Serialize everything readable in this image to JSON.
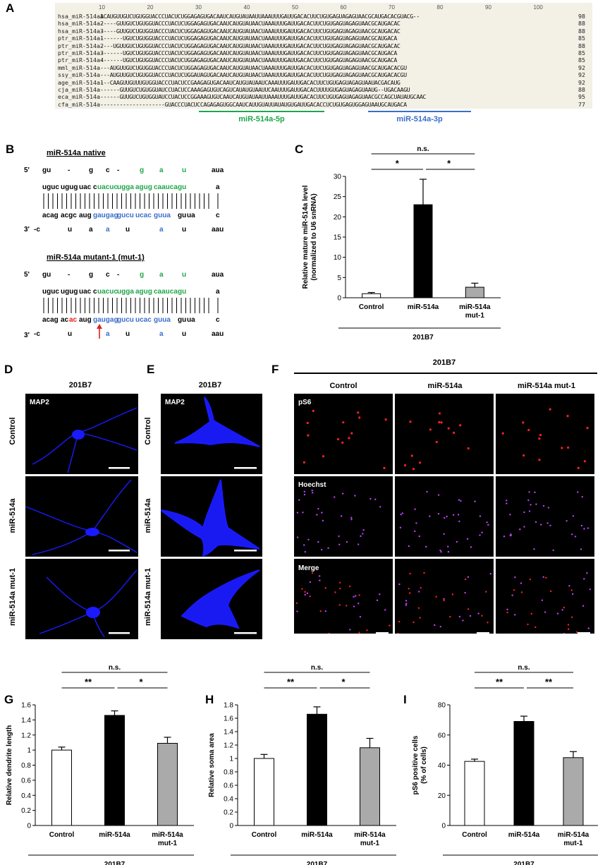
{
  "panel_letters": [
    "A",
    "B",
    "C",
    "D",
    "E",
    "F",
    "G",
    "H",
    "I"
  ],
  "alignment": {
    "ruler": [
      "10",
      "20",
      "30",
      "40",
      "50",
      "60",
      "70",
      "80",
      "90",
      "100"
    ],
    "rows": [
      {
        "name": "hsa_miR-514a1",
        "seq": "ACAUGUUGUCUGUGGUACCCUACUCUGGAGAGUGACAAUCAUGUAUAAUUAAAUUUGAUUGACACUUCUGUGAGUAGAGUAACGCAUGACACGUACG--",
        "len": "98"
      },
      {
        "name": "hsa_miR-514a2",
        "seq": "-----GUUGUCUGUGGUACCCUACUCUGGAGAGUGACAAUCAUGUAUAACUAAAUUUGAUUGACACUUCUGUGAGUAGAGUAACGCAUGACAC",
        "len": "88"
      },
      {
        "name": "hsa_miR-514a3",
        "seq": "-----GUUGUCUGUGGUACCCUACUCUGGAGAGUGACAAUCAUGUAUAACUAAAUUUGAUUGACACUUCUGUGAGUAGAGUAACGCAUGACAC",
        "len": "88"
      },
      {
        "name": "ptr_miR-514a1",
        "seq": "-------UGUCUGUGGUACCCUACUCUGGAGAGUGACAAUCAUGUAUAACUAAAUUUGAUUGACACUUCUGUGAGUAGAGUAACGCAUGACA",
        "len": "85"
      },
      {
        "name": "ptr_miR-514a2",
        "seq": "----UGUUGUCUGUGGUACCCUACUCUGGAGAGUGACAAUCAUGUAUAACUAAAUUUGAUUGACACUUCUGUGAGUAGAGUAACGCAUGACAC",
        "len": "88"
      },
      {
        "name": "ptr_miR-514a3",
        "seq": "-------UGUCUGUGGUACCCUACUCUGGAGAGUGACAAUCAUGUAUAACUAAAUUUGAUUGACACUUCUGUGAGUAGAGUAACGCAUGACA",
        "len": "85"
      },
      {
        "name": "ptr_miR-514a4",
        "seq": "-------UGUCUGUGGUACCCUACUCUGGAGAGUGACAAUCAUGUAUAACUAAAUUUGAUUGACACUUCUGUGAGUAGAGUAACGCAUGACA",
        "len": "85"
      },
      {
        "name": "mml_miR-514a",
        "seq": "---AUGUUGUCUGUGGUACCCUACUCUGGAGAGUGACAAUCAUGUAUAACUAAAUUUGAUUGACACUUCUGUGAGUAGAGUAACGCAUGACACGU",
        "len": "92"
      },
      {
        "name": "ssy_miR-514a",
        "seq": "---AUGUUGUCUGUGGUACCCUACUCUGGAUAGUGACAAUCAUGUAUAACUAAAUUUGAUUGACACUUCUGUGAGUAGAGUAACGCAUGACACGU",
        "len": "92"
      },
      {
        "name": "age_miR-514a1",
        "seq": "---CAAGUUGUUUGUGGUACCCUACUCCGAAGAGUGACAAUCAUGUAUAAUCAAAUUUGAUUGACACUUCUGUGAGUAGAGUAAUACGACAUG",
        "len": "92"
      },
      {
        "name": "cja_miR-514a",
        "seq": "------GUUGUCUGUGGUAUCCUACUCCAAAGAGUGUCAGUCAUAUGUAAUUCAAUUUGAUUGACACUUUUGUGAGUAGAGUAAUG--UGACAAGU",
        "len": "88"
      },
      {
        "name": "eca_miR-514a",
        "seq": "------GUUGUCUGUGGUAUCCUACUCCGGAAAGUGUCAAUCAUGUAUAAUUAAAUUUGAUUGACACUUCUGUGAGUAGAGUAACGCCAGCUAUAUGCAAC",
        "len": "95"
      },
      {
        "name": "cfa_miR-514a",
        "seq": "--------------------GUACCCUACUCCAGAGAGUGGCAAUCAUUGUAUUAUAUGUGAUUGACACCUCUGUGAGUGGAGUAAUGCAUGACA",
        "len": "77"
      }
    ],
    "label_5p": "miR-514a-5p",
    "label_3p": "miR-514a-3p",
    "color_5p": "#1fa64a",
    "color_3p": "#3b6ec9"
  },
  "hairpin_native": {
    "title": "miR-514a native",
    "prime5": "5'",
    "prime3": "3'",
    "top_loop": [
      "gu",
      "-",
      "g",
      "c",
      "-",
      "g",
      "a",
      "u",
      "aua"
    ],
    "top_paired": [
      "uguc",
      "ugug",
      "uac",
      "c",
      "uacuc",
      "ugga",
      "agug",
      "caauca",
      "gu",
      "a"
    ],
    "bottom_paired": [
      "acag",
      "acgc",
      "aug",
      "gaugag",
      "gucu",
      "ucac",
      "guua",
      "gu",
      "ua",
      "c"
    ],
    "bottom_loop": [
      "-c",
      "u",
      "a",
      "a",
      "u",
      "a",
      "u",
      "aau"
    ]
  },
  "hairpin_mutant": {
    "title": "miR-514a mutant-1 (mut-1)",
    "prime5": "5'",
    "prime3": "3'",
    "top_loop": [
      "gu",
      "-",
      "g",
      "c",
      "-",
      "g",
      "a",
      "u",
      "aua"
    ],
    "top_paired": [
      "uguc",
      "ugug",
      "uac",
      "c",
      "uacuc",
      "ugga",
      "agug",
      "caauca",
      "gu",
      "a"
    ],
    "bottom_paired_prefix": [
      "acag",
      "ac"
    ],
    "mutation": "ac",
    "bottom_paired": [
      "aug",
      "gaugag",
      "gucu",
      "ucac",
      "guua",
      "gu",
      "ua",
      "c"
    ],
    "bottom_loop": [
      "-c",
      "u",
      "a",
      "u",
      "a",
      "u",
      "aau"
    ]
  },
  "chart_C": {
    "ylabel": "Relative mature miR-514a level (normalized to U6 snRNA)",
    "ylabel1": "Relative mature miR-514a level",
    "ylabel2": "(normalized to U6 snRNA)",
    "categories": [
      "Control",
      "miR-514a",
      "miR-514a mut-1"
    ],
    "cat_lines": [
      [
        "Control"
      ],
      [
        "miR-514a"
      ],
      [
        "miR-514a",
        "mut-1"
      ]
    ],
    "values": [
      1.0,
      23.0,
      2.6
    ],
    "errors": [
      0.3,
      6.3,
      1.0
    ],
    "ylim": [
      0,
      30
    ],
    "ticks": [
      "0",
      "5",
      "10",
      "15",
      "20",
      "25",
      "30"
    ],
    "sig": [
      "*",
      "*",
      "n.s."
    ],
    "group_label": "201B7",
    "fills": [
      "#ffffff",
      "#000000",
      "#aaaaaa"
    ]
  },
  "panel_D": {
    "header": "201B7",
    "stain": "MAP2",
    "rows": [
      "Control",
      "miR-514a",
      "miR-514a mut-1"
    ]
  },
  "panel_E": {
    "header": "201B7",
    "stain": "MAP2",
    "rows": [
      "Control",
      "miR-514a",
      "miR-514a mut-1"
    ]
  },
  "panel_F": {
    "header": "201B7",
    "columns": [
      "Control",
      "miR-514a",
      "miR-514a mut-1"
    ],
    "rows": [
      "pS6",
      "Hoechst",
      "Merge"
    ]
  },
  "chart_data": [
    {
      "type": "bar",
      "title": "",
      "ylabel": "Relative dendrite length",
      "categories": [
        "Control",
        "miR-514a",
        "miR-514a mut-1"
      ],
      "cat_lines": [
        [
          "Control"
        ],
        [
          "miR-514a"
        ],
        [
          "miR-514a",
          "mut-1"
        ]
      ],
      "values": [
        1.0,
        1.46,
        1.09
      ],
      "errors": [
        0.04,
        0.06,
        0.08
      ],
      "ylim": [
        0,
        1.6
      ],
      "ticks": [
        "0",
        "0.2",
        "0.4",
        "0.6",
        "0.8",
        "1",
        "1.2",
        "1.4",
        "1.6"
      ],
      "sig": [
        "**",
        "*",
        "n.s."
      ],
      "group_label": "201B7"
    },
    {
      "type": "bar",
      "title": "",
      "ylabel": "Relative soma area",
      "categories": [
        "Control",
        "miR-514a",
        "miR-514a mut-1"
      ],
      "cat_lines": [
        [
          "Control"
        ],
        [
          "miR-514a"
        ],
        [
          "miR-514a",
          "mut-1"
        ]
      ],
      "values": [
        1.0,
        1.66,
        1.16
      ],
      "errors": [
        0.06,
        0.11,
        0.14
      ],
      "ylim": [
        0,
        1.8
      ],
      "ticks": [
        "0",
        "0.2",
        "0.4",
        "0.6",
        "0.8",
        "1",
        "1.2",
        "1.4",
        "1.6",
        "1.8"
      ],
      "sig": [
        "**",
        "*",
        "n.s."
      ],
      "group_label": "201B7"
    },
    {
      "type": "bar",
      "title": "",
      "ylabel": "pS6 positive cells (% of cells)",
      "ylabel1": "pS6 positive cells",
      "ylabel2": "(% of cells)",
      "categories": [
        "Control",
        "miR-514a",
        "miR-514a mut-1"
      ],
      "cat_lines": [
        [
          "Control"
        ],
        [
          "miR-514a"
        ],
        [
          "miR-514a",
          "mut-1"
        ]
      ],
      "values": [
        42.5,
        69.0,
        45.0
      ],
      "errors": [
        1.5,
        3.5,
        4.0
      ],
      "ylim": [
        0,
        80
      ],
      "ticks": [
        "0",
        "20",
        "40",
        "60",
        "80"
      ],
      "sig": [
        "**",
        "**",
        "n.s."
      ],
      "group_label": "201B7"
    }
  ],
  "colors": {
    "bar_fills": [
      "#ffffff",
      "#000000",
      "#aaaaaa"
    ],
    "map2_blue": "#1a1aff",
    "ps6_red": "#ff2020",
    "hoechst_magenta": "#c040ff",
    "mutation_red": "#e02020"
  }
}
